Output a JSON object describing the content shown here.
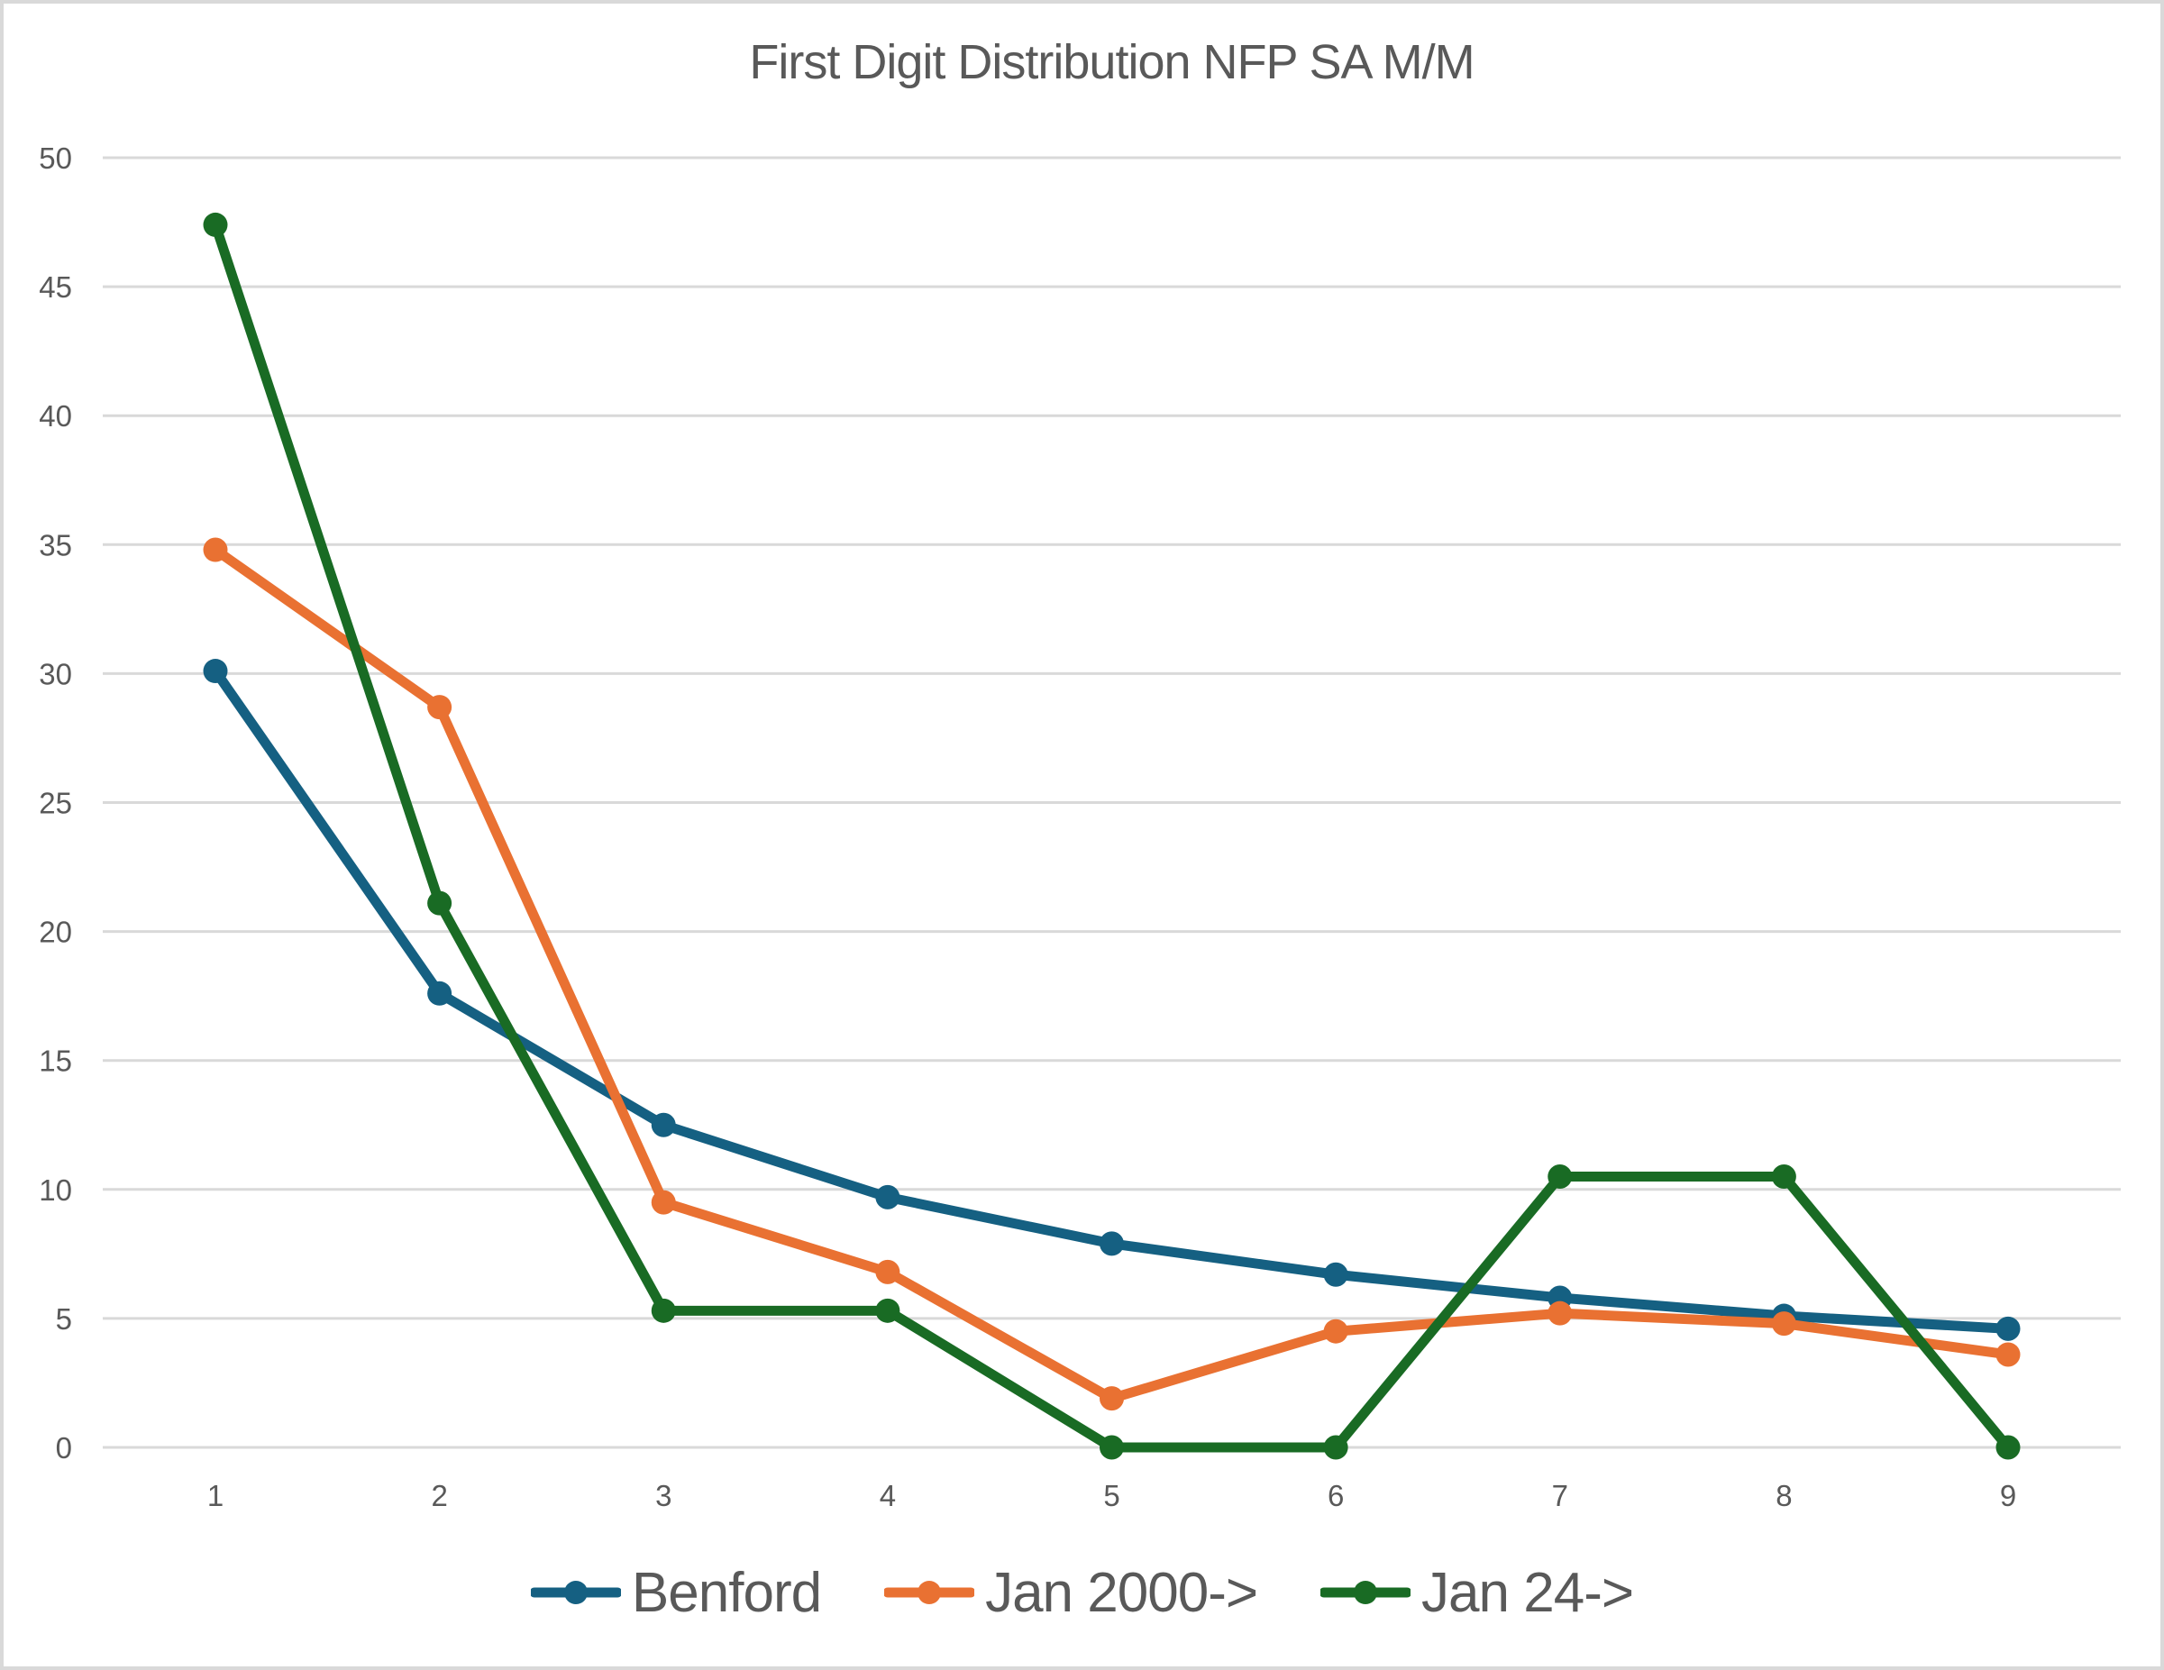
{
  "colors": {
    "background": "#FFFFFF",
    "border": "#D9D9D9",
    "gridline": "#D9D9D9",
    "axis_text": "#595959",
    "title_text": "#595959",
    "legend_text": "#595959"
  },
  "chart_data": {
    "type": "line",
    "title": "First Digit Distribution NFP SA M/M",
    "xlabel": "",
    "ylabel": "",
    "categories": [
      "1",
      "2",
      "3",
      "4",
      "5",
      "6",
      "7",
      "8",
      "9"
    ],
    "series": [
      {
        "name": "Benford",
        "color": "#156082",
        "values": [
          30.1,
          17.6,
          12.5,
          9.7,
          7.9,
          6.7,
          5.8,
          5.1,
          4.6
        ]
      },
      {
        "name": "Jan 2000->",
        "color": "#E97132",
        "values": [
          34.8,
          28.7,
          9.5,
          6.8,
          1.9,
          4.5,
          5.2,
          4.8,
          3.6
        ]
      },
      {
        "name": "Jan 24->",
        "color": "#196B24",
        "values": [
          47.4,
          21.1,
          5.3,
          5.3,
          0,
          0,
          10.5,
          10.5,
          0
        ]
      }
    ],
    "ylim": [
      0,
      50
    ],
    "yticks": [
      0,
      5,
      10,
      15,
      20,
      25,
      30,
      35,
      40,
      45,
      50
    ],
    "grid": true,
    "legend_position": "bottom"
  }
}
